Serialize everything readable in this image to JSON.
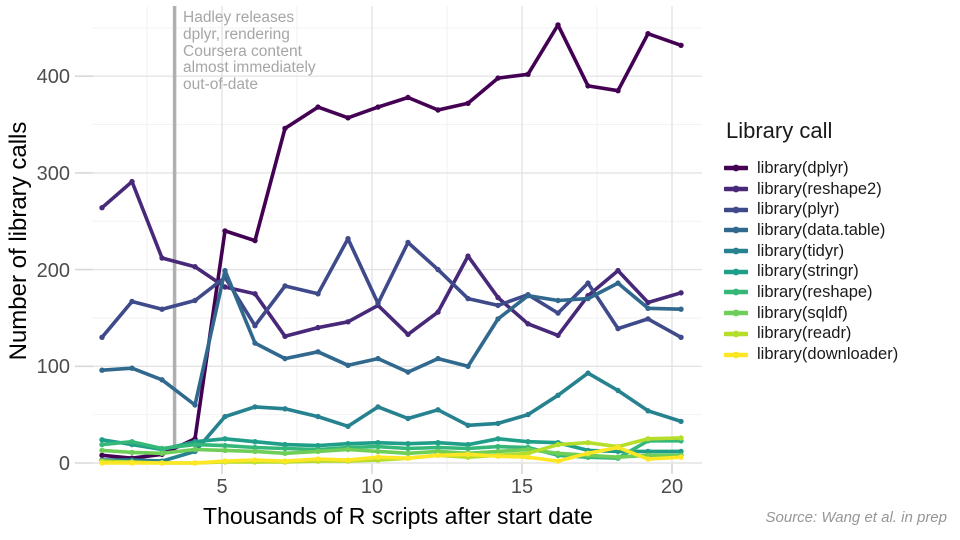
{
  "chart_data": {
    "type": "line",
    "title": "",
    "xlabel": "Thousands of R scripts after start date",
    "ylabel": "Number of library calls",
    "xlim": [
      0.7,
      20.93
    ],
    "ylim": [
      -8,
      472
    ],
    "x_ticks": [
      5,
      10,
      15,
      20
    ],
    "y_ticks": [
      0,
      100,
      200,
      300,
      400
    ],
    "grid": {
      "on": true,
      "x_minor": [
        2.5,
        7.5,
        12.5,
        17.5
      ],
      "y_minor": [
        50,
        150,
        250,
        350,
        450
      ]
    },
    "legend": {
      "title": "Library call",
      "position": "right"
    },
    "annotation": {
      "line_x": 3.42,
      "lines": [
        "Hadley releases",
        "dplyr, rendering",
        "Coursera content",
        "almost immediately",
        "out-of-date"
      ],
      "color": "#a6a6a6",
      "line_color": "#b0b0b0"
    },
    "x": [
      1,
      2,
      3,
      4.1,
      5.1,
      6.1,
      7.1,
      8.2,
      9.2,
      10.2,
      11.2,
      12.2,
      13.2,
      14.2,
      15.2,
      16.2,
      17.2,
      18.2,
      19.2,
      20.3
    ],
    "series": [
      {
        "key": "dplyr",
        "label": "library(dplyr)",
        "color": "#440154",
        "values": [
          8,
          5,
          9,
          25,
          240,
          230,
          346,
          368,
          357,
          368,
          378,
          365,
          372,
          398,
          402,
          453,
          390,
          385,
          444,
          432
        ]
      },
      {
        "key": "reshape2",
        "label": "library(reshape2)",
        "color": "#482878",
        "values": [
          264,
          291,
          212,
          203,
          182,
          175,
          131,
          140,
          146,
          163,
          133,
          156,
          214,
          171,
          144,
          132,
          173,
          199,
          166,
          176
        ]
      },
      {
        "key": "plyr",
        "label": "library(plyr)",
        "color": "#3e4a89",
        "values": [
          130,
          167,
          159,
          168,
          192,
          142,
          183,
          175,
          232,
          165,
          228,
          200,
          170,
          163,
          174,
          155,
          186,
          139,
          149,
          130
        ]
      },
      {
        "key": "data.table",
        "label": "library(data.table)",
        "color": "#31688e",
        "values": [
          96,
          98,
          86,
          60,
          199,
          124,
          108,
          115,
          101,
          108,
          94,
          108,
          100,
          149,
          173,
          168,
          170,
          186,
          160,
          159
        ]
      },
      {
        "key": "tidyr",
        "label": "library(tidyr)",
        "color": "#26828e",
        "values": [
          3,
          3,
          2,
          12,
          48,
          58,
          56,
          48,
          38,
          58,
          46,
          55,
          39,
          41,
          50,
          70,
          93,
          75,
          54,
          43
        ]
      },
      {
        "key": "stringr",
        "label": "library(stringr)",
        "color": "#1f9e89",
        "values": [
          24,
          19,
          14,
          22,
          25,
          22,
          19,
          18,
          20,
          21,
          20,
          21,
          19,
          25,
          22,
          21,
          13,
          12,
          12,
          12
        ]
      },
      {
        "key": "reshape",
        "label": "library(reshape)",
        "color": "#35b779",
        "values": [
          19,
          22,
          15,
          19,
          18,
          16,
          15,
          14,
          16,
          17,
          15,
          16,
          15,
          17,
          16,
          8,
          6,
          5,
          23,
          23
        ]
      },
      {
        "key": "sqldf",
        "label": "library(sqldf)",
        "color": "#6ece58",
        "values": [
          13,
          11,
          10,
          14,
          13,
          12,
          10,
          12,
          14,
          12,
          10,
          12,
          10,
          12,
          14,
          10,
          8,
          6,
          8,
          8
        ]
      },
      {
        "key": "readr",
        "label": "library(readr)",
        "color": "#b5de2b",
        "values": [
          2,
          1,
          0,
          0,
          1,
          1,
          1,
          2,
          2,
          3,
          5,
          8,
          6,
          8,
          10,
          19,
          21,
          17,
          25,
          26
        ]
      },
      {
        "key": "downloader",
        "label": "library(downloader)",
        "color": "#fde725",
        "values": [
          0,
          0,
          0,
          0,
          2,
          3,
          2,
          4,
          3,
          6,
          5,
          8,
          9,
          7,
          6,
          2,
          10,
          16,
          4,
          6
        ]
      }
    ]
  },
  "source_note": "Source: Wang et al. in prep"
}
